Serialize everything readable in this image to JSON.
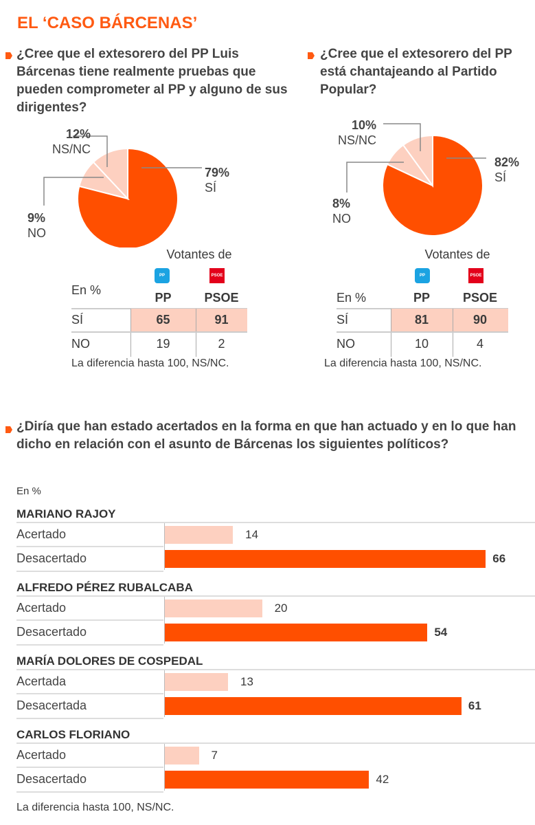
{
  "title": "EL ‘CASO BÁRCENAS’",
  "colors": {
    "accent": "#ff5a12",
    "bar_main": "#ff4f00",
    "bar_light": "#fdd0c0",
    "pp": "#1ba3e2",
    "psoe": "#e3001b"
  },
  "chart_data": [
    {
      "type": "pie",
      "title": "¿Cree que el extesorero del PP Luis Bárcenas tiene realmente pruebas que pueden comprometer al PP y alguno de sus dirigentes?",
      "slices": [
        {
          "label": "SÍ",
          "value": 79,
          "display": "79%"
        },
        {
          "label": "NO",
          "value": 9,
          "display": "9%"
        },
        {
          "label": "NS/NC",
          "value": 12,
          "display": "12%"
        }
      ],
      "table": {
        "header": "Votantes de",
        "unit": "En %",
        "columns": [
          "PP",
          "PSOE"
        ],
        "logos": [
          "PP",
          "PSOE"
        ],
        "rows": [
          {
            "label": "SÍ",
            "values": [
              "65",
              "91"
            ]
          },
          {
            "label": "NO",
            "values": [
              "19",
              "2"
            ]
          }
        ],
        "note": "La diferencia hasta 100, NS/NC."
      }
    },
    {
      "type": "pie",
      "title": "¿Cree que el extesorero del PP está chantajeando al Partido Popular?",
      "slices": [
        {
          "label": "SÍ",
          "value": 82,
          "display": "82%"
        },
        {
          "label": "NO",
          "value": 8,
          "display": "8%"
        },
        {
          "label": "NS/NC",
          "value": 10,
          "display": "10%"
        }
      ],
      "table": {
        "header": "Votantes de",
        "unit": "En %",
        "columns": [
          "PP",
          "PSOE"
        ],
        "logos": [
          "PP",
          "PSOE"
        ],
        "rows": [
          {
            "label": "SÍ",
            "values": [
              "81",
              "90"
            ]
          },
          {
            "label": "NO",
            "values": [
              "10",
              "4"
            ]
          }
        ],
        "note": "La diferencia hasta 100, NS/NC."
      }
    },
    {
      "type": "bar",
      "title": "¿Diría que han estado acertados en la forma en que han actuado y en lo que han dicho en relación con el asunto de Bárcenas los siguientes políticos?",
      "unit": "En %",
      "groups": [
        {
          "name": "MARIANO RAJOY",
          "rows": [
            {
              "label": "Acertado",
              "value": 14
            },
            {
              "label": "Desacertado",
              "value": 66
            }
          ]
        },
        {
          "name": "ALFREDO PÉREZ RUBALCABA",
          "rows": [
            {
              "label": "Acertado",
              "value": 20
            },
            {
              "label": "Desacertado",
              "value": 54
            }
          ]
        },
        {
          "name": "MARÍA DOLORES DE COSPEDAL",
          "rows": [
            {
              "label": "Acertada",
              "value": 13
            },
            {
              "label": "Desacertada",
              "value": 61
            }
          ]
        },
        {
          "name": "CARLOS FLORIANO",
          "rows": [
            {
              "label": "Acertado",
              "value": 7
            },
            {
              "label": "Desacertado",
              "value": 42
            }
          ]
        }
      ],
      "note": "La diferencia hasta 100, NS/NC."
    }
  ]
}
